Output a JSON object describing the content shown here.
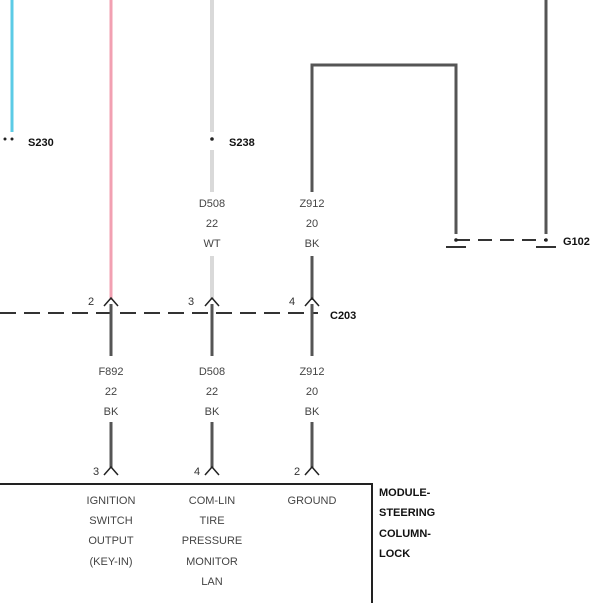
{
  "splices": {
    "s230": "S230",
    "s238": "S238",
    "g102": "G102"
  },
  "connector": "C203",
  "wires_upper": [
    {
      "circuit": "D508",
      "gauge": "22",
      "color": "WT"
    },
    {
      "circuit": "Z912",
      "gauge": "20",
      "color": "BK"
    }
  ],
  "wires_lower": [
    {
      "circuit": "F892",
      "gauge": "22",
      "color": "BK"
    },
    {
      "circuit": "D508",
      "gauge": "22",
      "color": "BK"
    },
    {
      "circuit": "Z912",
      "gauge": "20",
      "color": "BK"
    }
  ],
  "c203_pins": [
    "2",
    "3",
    "4"
  ],
  "module_pins": [
    "3",
    "4",
    "2"
  ],
  "module": {
    "title_lines": [
      "MODULE-",
      "STEERING",
      "COLUMN-",
      "LOCK"
    ],
    "pin_labels": [
      [
        "IGNITION",
        "SWITCH",
        "OUTPUT",
        "(KEY-IN)"
      ],
      [
        "COM-LIN",
        "TIRE",
        "PRESSURE",
        "MONITOR",
        "LAN"
      ],
      [
        "GROUND"
      ]
    ]
  },
  "colors": {
    "pink_wire": "#f2a0b2",
    "cyan_wire": "#5ccbe6",
    "light_wire": "#d9d9d9",
    "dark_wire": "#555555"
  }
}
